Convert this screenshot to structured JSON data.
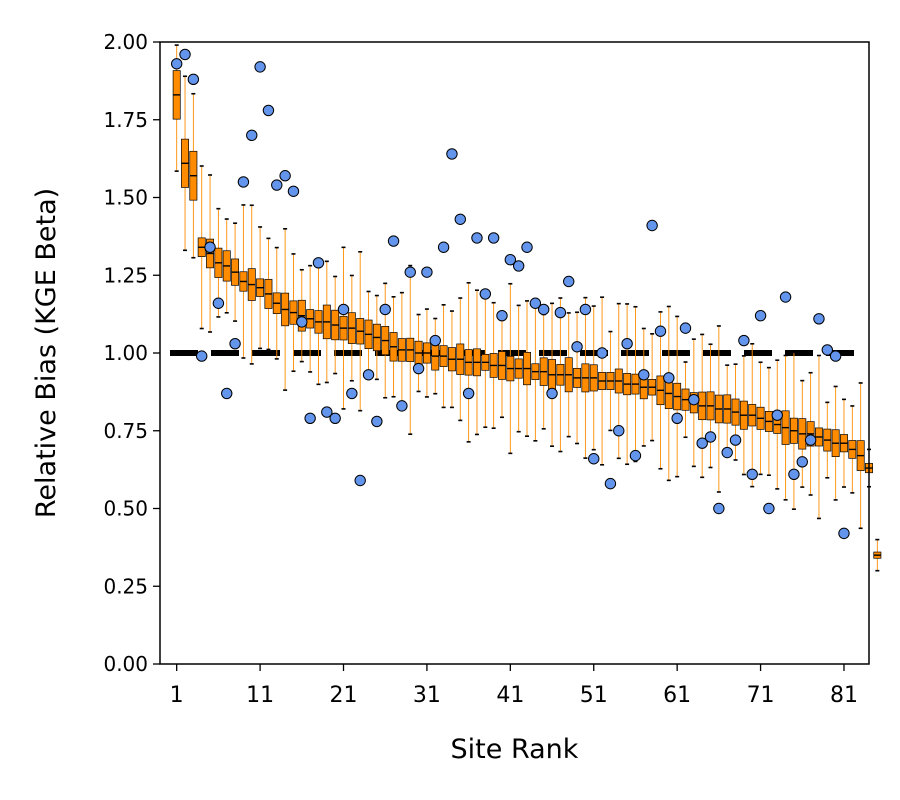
{
  "chart_data": {
    "type": "box",
    "xlabel": "Site Rank",
    "ylabel": "Relative Bias (KGE Beta)",
    "ylim": [
      0,
      2
    ],
    "xlim": [
      -1,
      84
    ],
    "xticks": [
      1,
      11,
      21,
      31,
      41,
      51,
      61,
      71,
      81
    ],
    "xtick_labels": [
      "1",
      "11",
      "21",
      "31",
      "41",
      "51",
      "61",
      "71",
      "81"
    ],
    "yticks": [
      0,
      0.25,
      0.5,
      0.75,
      1.0,
      1.25,
      1.5,
      1.75,
      2.0
    ],
    "ytick_labels": [
      "0.00",
      "0.25",
      "0.50",
      "0.75",
      "1.00",
      "1.25",
      "1.50",
      "1.75",
      "2.00"
    ],
    "reference_line": {
      "y": 1.0,
      "style": "dashed",
      "color": "#000000"
    },
    "grid": false,
    "colors": {
      "box_fill": "#ff8c00",
      "box_edge": "#000000",
      "whisker": "#ff8c00",
      "point_fill": "#6495ed",
      "point_edge": "#000000"
    },
    "medians": [
      1.83,
      1.61,
      1.57,
      1.34,
      1.32,
      1.29,
      1.28,
      1.26,
      1.23,
      1.22,
      1.21,
      1.19,
      1.16,
      1.14,
      1.13,
      1.12,
      1.11,
      1.1,
      1.1,
      1.09,
      1.08,
      1.08,
      1.07,
      1.06,
      1.05,
      1.04,
      1.02,
      1.01,
      1.01,
      1.0,
      1.0,
      0.99,
      0.99,
      0.98,
      0.98,
      0.97,
      0.97,
      0.97,
      0.96,
      0.96,
      0.95,
      0.95,
      0.95,
      0.94,
      0.94,
      0.93,
      0.93,
      0.93,
      0.92,
      0.92,
      0.92,
      0.91,
      0.91,
      0.91,
      0.9,
      0.9,
      0.89,
      0.89,
      0.88,
      0.87,
      0.86,
      0.85,
      0.84,
      0.83,
      0.83,
      0.82,
      0.82,
      0.81,
      0.8,
      0.8,
      0.79,
      0.78,
      0.77,
      0.76,
      0.75,
      0.74,
      0.74,
      0.73,
      0.72,
      0.71,
      0.71,
      0.69,
      0.67,
      0.63,
      0.35
    ],
    "points": [
      1.93,
      1.96,
      1.88,
      0.99,
      1.34,
      1.16,
      0.87,
      1.03,
      1.55,
      1.7,
      1.92,
      1.78,
      1.54,
      1.57,
      1.52,
      1.1,
      0.79,
      1.29,
      0.81,
      0.79,
      1.14,
      0.87,
      0.59,
      0.93,
      0.78,
      1.14,
      1.36,
      0.83,
      1.26,
      0.95,
      1.26,
      1.04,
      1.34,
      1.64,
      1.43,
      0.87,
      1.37,
      1.19,
      1.37,
      1.12,
      1.3,
      1.28,
      1.34,
      1.16,
      1.14,
      0.87,
      1.13,
      1.23,
      1.02,
      1.14,
      0.66,
      1.0,
      0.58,
      0.75,
      1.03,
      0.67,
      0.93,
      1.41,
      1.07,
      0.92,
      0.79,
      1.08,
      0.85,
      0.71,
      0.73,
      0.5,
      0.68,
      0.72,
      1.04,
      0.61,
      1.12,
      0.5,
      0.8,
      1.18,
      0.61,
      0.65,
      0.72,
      1.11,
      1.01,
      0.99,
      0.42
    ]
  }
}
